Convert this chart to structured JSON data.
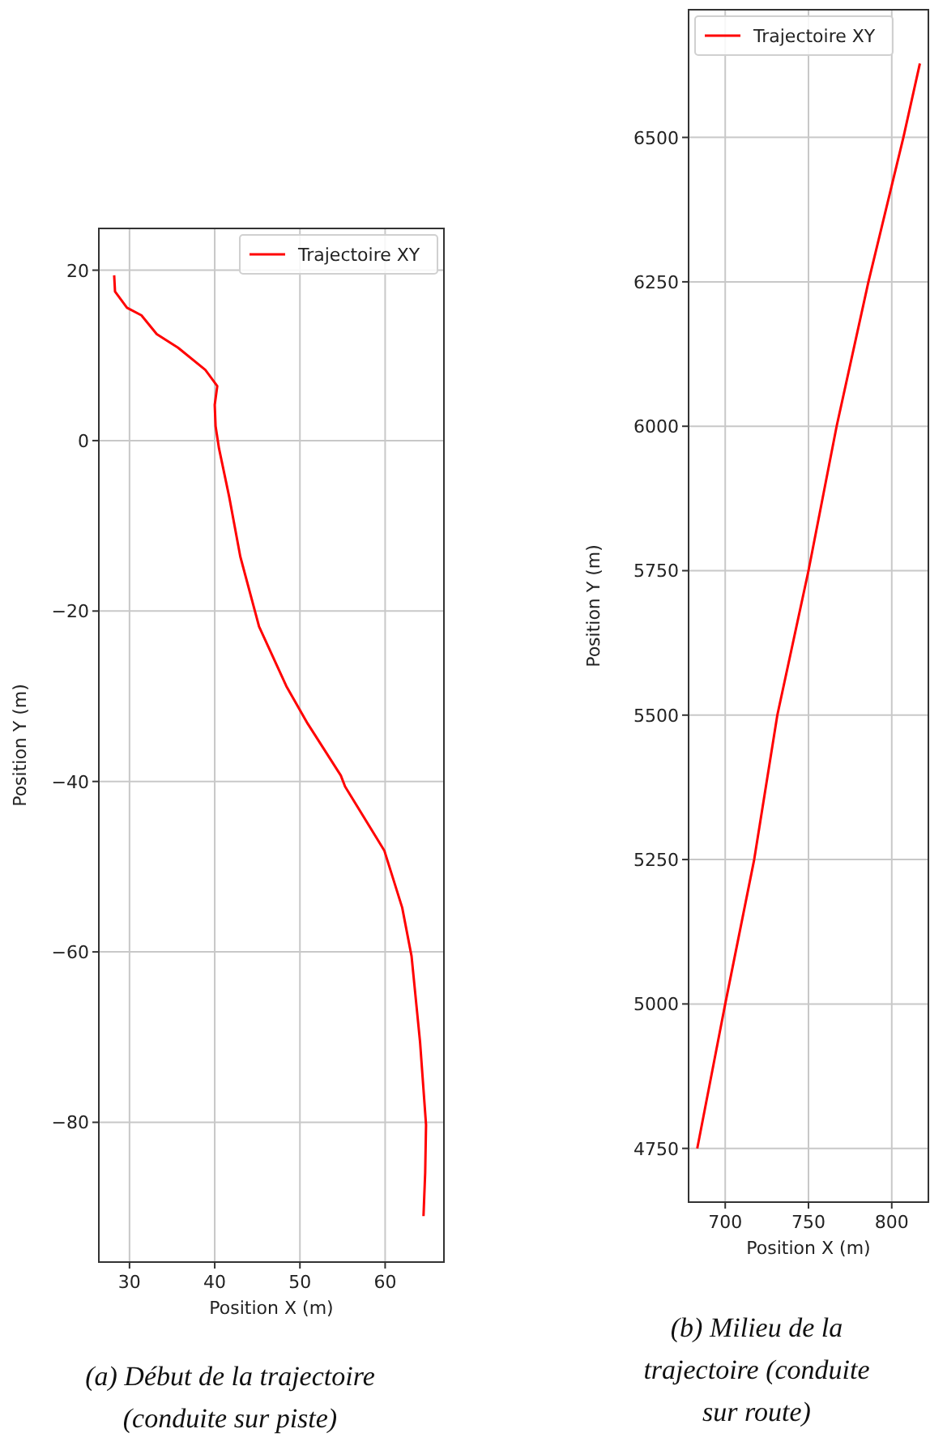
{
  "chart_data": [
    {
      "type": "line",
      "xlabel": "Position X (m)",
      "ylabel": "Position Y (m)",
      "annotations": [
        "(a) Début de la trajectoire (conduite sur piste)"
      ],
      "xlim": [
        26.4,
        66.9
      ],
      "ylim": [
        -96.4,
        24.9
      ],
      "xticks": [
        30,
        40,
        50,
        60
      ],
      "yticks": [
        -80,
        -60,
        -40,
        -20,
        0,
        20
      ],
      "grid": true,
      "legend": "top right",
      "series": [
        {
          "name": "Trajectoire XY",
          "color": "#ff0000",
          "x": [
            28.2,
            28.3,
            29.7,
            31.4,
            33.2,
            35.7,
            38.9,
            40.3,
            40.0,
            40.1,
            40.5,
            41.7,
            43.0,
            45.2,
            48.4,
            50.9,
            54.8,
            55.3,
            59.9,
            62.0,
            63.1,
            64.1,
            64.8,
            64.7,
            64.5
          ],
          "values": [
            19.4,
            17.5,
            15.6,
            14.7,
            12.5,
            10.9,
            8.3,
            6.4,
            4.2,
            1.7,
            -0.9,
            -6.6,
            -13.6,
            -21.8,
            -28.8,
            -33.2,
            -39.3,
            -40.6,
            -48.1,
            -54.8,
            -60.5,
            -70.6,
            -80.3,
            -85.9,
            -91
          ]
        }
      ]
    },
    {
      "type": "line",
      "xlabel": "Position X (m)",
      "ylabel": "Position Y (m)",
      "annotations": [
        "(b) Milieu de la trajectoire (conduite sur route)"
      ],
      "xlim": [
        678,
        822
      ],
      "ylim": [
        4657,
        6721
      ],
      "xticks": [
        700,
        750,
        800
      ],
      "yticks": [
        4750,
        5000,
        5250,
        5500,
        5750,
        6000,
        6250,
        6500
      ],
      "grid": true,
      "legend": "top left",
      "series": [
        {
          "name": "Trajectoire XY",
          "color": "#ff0000",
          "x": [
            683.2,
            700,
            717.4,
            731.3,
            750,
            766.9,
            786,
            807,
            816.9
          ],
          "values": [
            4750,
            5000,
            5250,
            5500,
            5750,
            6000,
            6250,
            6500,
            6628
          ]
        }
      ]
    }
  ]
}
